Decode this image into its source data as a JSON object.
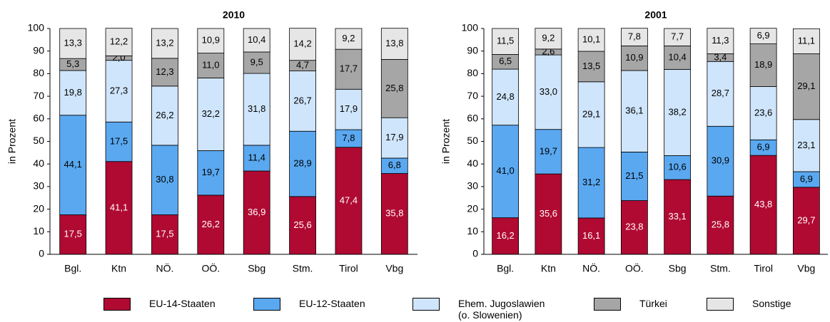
{
  "chart_data": [
    {
      "type": "stacked-bar",
      "title": "2010",
      "ylabel": "in Prozent",
      "categories": [
        "Bgl.",
        "Ktn",
        "NÖ.",
        "OÖ.",
        "Sbg",
        "Stm.",
        "Tirol",
        "Vbg"
      ],
      "ylim": [
        0,
        100
      ],
      "yticks": [
        0,
        10,
        20,
        30,
        40,
        50,
        60,
        70,
        80,
        90,
        100
      ],
      "series": [
        {
          "name": "EU-14-Staaten",
          "color": "#b00a32",
          "values": [
            17.5,
            41.1,
            17.5,
            26.2,
            36.9,
            25.6,
            47.4,
            35.8
          ],
          "value_labels": [
            "17,5",
            "41,1",
            "17,5",
            "26,2",
            "36,9",
            "25,6",
            "47,4",
            "35,8"
          ]
        },
        {
          "name": "EU-12-Staaten",
          "color": "#5aa8f0",
          "values": [
            44.1,
            17.5,
            30.8,
            19.7,
            11.4,
            28.9,
            7.8,
            6.8
          ],
          "value_labels": [
            "44,1",
            "17,5",
            "30,8",
            "19,7",
            "11,4",
            "28,9",
            "7,8",
            "6,8"
          ]
        },
        {
          "name": "Ehem. Jugoslawien (o. Slowenien)",
          "color": "#cfe5fb",
          "values": [
            19.8,
            27.3,
            26.2,
            32.2,
            31.8,
            26.7,
            17.9,
            17.9
          ],
          "value_labels": [
            "19,8",
            "27,3",
            "26,2",
            "32,2",
            "31,8",
            "26,7",
            "17,9",
            "17,9"
          ]
        },
        {
          "name": "Türkei",
          "color": "#a6a6a6",
          "values": [
            5.3,
            2.0,
            12.3,
            11.0,
            9.5,
            4.7,
            17.7,
            25.8
          ],
          "value_labels": [
            "5,3",
            "2,0",
            "12,3",
            "11,0",
            "9,5",
            "4,7",
            "17,7",
            "25,8"
          ]
        },
        {
          "name": "Sonstige",
          "color": "#e6e6e6",
          "values": [
            13.3,
            12.2,
            13.2,
            10.9,
            10.4,
            14.2,
            9.2,
            13.8
          ],
          "value_labels": [
            "13,3",
            "12,2",
            "13,2",
            "10,9",
            "10,4",
            "14,2",
            "9,2",
            "13,8"
          ]
        }
      ]
    },
    {
      "type": "stacked-bar",
      "title": "2001",
      "ylabel": "in Prozent",
      "categories": [
        "Bgl.",
        "Ktn",
        "NÖ.",
        "OÖ.",
        "Sbg",
        "Stm.",
        "Tirol",
        "Vbg"
      ],
      "ylim": [
        0,
        100
      ],
      "yticks": [
        0,
        10,
        20,
        30,
        40,
        50,
        60,
        70,
        80,
        90,
        100
      ],
      "series": [
        {
          "color": "#b00a32",
          "values": [
            16.2,
            35.6,
            16.1,
            23.8,
            33.1,
            25.8,
            43.8,
            29.7
          ],
          "value_labels": [
            "16,2",
            "35,6",
            "16,1",
            "23,8",
            "33,1",
            "25,8",
            "43,8",
            "29,7"
          ]
        },
        {
          "color": "#5aa8f0",
          "values": [
            41.0,
            19.7,
            31.2,
            21.5,
            10.6,
            30.9,
            6.9,
            6.9
          ],
          "value_labels": [
            "41,0",
            "19,7",
            "31,2",
            "21,5",
            "10,6",
            "30,9",
            "6,9",
            "6,9"
          ]
        },
        {
          "color": "#cfe5fb",
          "values": [
            24.8,
            33.0,
            29.1,
            36.1,
            38.2,
            28.7,
            23.6,
            23.1
          ],
          "value_labels": [
            "24,8",
            "33,0",
            "29,1",
            "36,1",
            "38,2",
            "28,7",
            "23,6",
            "23,1"
          ]
        },
        {
          "color": "#a6a6a6",
          "values": [
            6.5,
            2.6,
            13.5,
            10.9,
            10.4,
            3.4,
            18.9,
            29.1
          ],
          "value_labels": [
            "6,5",
            "2,6",
            "13,5",
            "10,9",
            "10,4",
            "3,4",
            "18,9",
            "29,1"
          ]
        },
        {
          "color": "#e6e6e6",
          "values": [
            11.5,
            9.2,
            10.1,
            7.8,
            7.7,
            11.3,
            6.9,
            11.1
          ],
          "value_labels": [
            "11,5",
            "9,2",
            "10,1",
            "7,8",
            "7,7",
            "11,3",
            "6,9",
            "11,1"
          ]
        }
      ]
    }
  ]
}
